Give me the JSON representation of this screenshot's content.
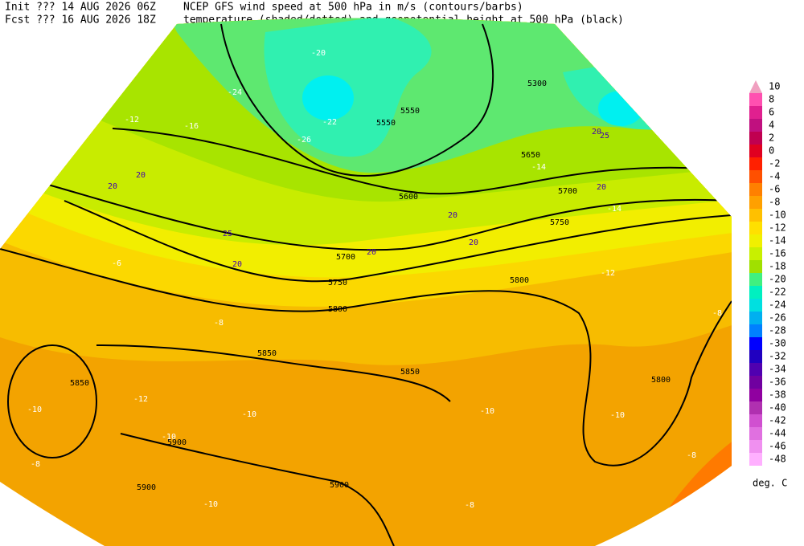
{
  "header": {
    "init": "Init  ??? 14 AUG 2026 06Z",
    "fcst": "Fcst ??? 16 AUG 2026 18Z",
    "line1": "NCEP GFS wind speed at 500 hPa in m/s (contours/barbs)",
    "line2": "temperature (shaded/dotted) and geopotential height at 500 hPa (black)"
  },
  "legend": {
    "unit": "deg. C",
    "levels": [
      10,
      8,
      6,
      4,
      2,
      0,
      -2,
      -4,
      -6,
      -8,
      -10,
      -12,
      -14,
      -16,
      -18,
      -20,
      -22,
      -24,
      -26,
      -28,
      -30,
      -32,
      -34,
      -36,
      -38,
      -40,
      -42,
      -44,
      -46,
      -48
    ],
    "colors": [
      "#f0a0c0",
      "#ff50b0",
      "#e0208f",
      "#c0107f",
      "#c00050",
      "#e00020",
      "#ff2000",
      "#ff5000",
      "#ff8000",
      "#ffa000",
      "#ffc000",
      "#ffe000",
      "#f0f000",
      "#c8f000",
      "#a0e000",
      "#40f080",
      "#00f0c0",
      "#00e0e0",
      "#00b0f0",
      "#0080ff",
      "#0000ff",
      "#2000c0",
      "#5000b0",
      "#7000a0",
      "#9000a0",
      "#b030b0",
      "#d050d0",
      "#e070e0",
      "#f090f0",
      "#ffb0ff"
    ]
  },
  "map": {
    "height_labels": [
      5300,
      5550,
      5550,
      5650,
      5700,
      5600,
      5750,
      5700,
      5750,
      5800,
      5800,
      5850,
      5850,
      5850,
      5800,
      5900,
      5900,
      5900
    ],
    "temperature_labels": [
      -20,
      -22,
      -26,
      -24,
      -16,
      -12,
      -14,
      -14,
      -12,
      -8,
      -6,
      -8,
      -10,
      -10,
      -10,
      -12,
      -8,
      -10,
      -8,
      -10,
      -10,
      -8
    ],
    "wind_labels": [
      20,
      20,
      25,
      20,
      20,
      20,
      20,
      20,
      25,
      20
    ]
  }
}
